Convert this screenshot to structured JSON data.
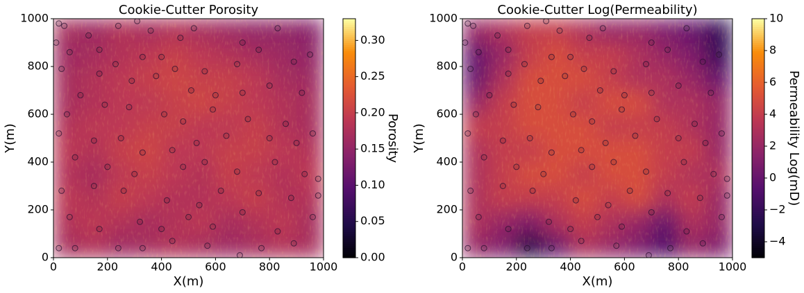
{
  "chart_data": [
    {
      "type": "heatmap",
      "title": "Cookie-Cutter Porosity",
      "xlabel": "X(m)",
      "ylabel": "Y(m)",
      "xlim": [
        0,
        1000
      ],
      "ylim": [
        0,
        1000
      ],
      "xticks": [
        0,
        200,
        400,
        600,
        800,
        1000
      ],
      "yticks": [
        0,
        200,
        400,
        600,
        800,
        1000
      ],
      "colormap": "inferno",
      "colorbar": {
        "label": "Porosity",
        "lim": [
          0,
          0.33
        ],
        "ticks": [
          {
            "value": 0,
            "label": "0.00"
          },
          {
            "value": 0.05,
            "label": "0.05"
          },
          {
            "value": 0.1,
            "label": "0.10"
          },
          {
            "value": 0.15,
            "label": "0.15"
          },
          {
            "value": 0.2,
            "label": "0.20"
          },
          {
            "value": 0.25,
            "label": "0.25"
          },
          {
            "value": 0.3,
            "label": "0.30"
          }
        ]
      },
      "z": [
        [
          0.17,
          0.18,
          0.16,
          0.17,
          0.18,
          0.17,
          0.16,
          0.17,
          0.18,
          0.17
        ],
        [
          0.18,
          0.19,
          0.18,
          0.17,
          0.18,
          0.19,
          0.17,
          0.18,
          0.19,
          0.17
        ],
        [
          0.19,
          0.18,
          0.2,
          0.19,
          0.18,
          0.18,
          0.19,
          0.2,
          0.18,
          0.18
        ],
        [
          0.18,
          0.17,
          0.19,
          0.2,
          0.19,
          0.18,
          0.2,
          0.19,
          0.18,
          0.19
        ],
        [
          0.19,
          0.18,
          0.2,
          0.21,
          0.19,
          0.19,
          0.2,
          0.2,
          0.19,
          0.18
        ],
        [
          0.18,
          0.19,
          0.19,
          0.2,
          0.2,
          0.19,
          0.19,
          0.2,
          0.18,
          0.17
        ],
        [
          0.17,
          0.18,
          0.19,
          0.19,
          0.2,
          0.21,
          0.2,
          0.19,
          0.18,
          0.17
        ],
        [
          0.17,
          0.18,
          0.19,
          0.2,
          0.21,
          0.2,
          0.2,
          0.19,
          0.17,
          0.16
        ],
        [
          0.16,
          0.17,
          0.18,
          0.19,
          0.2,
          0.19,
          0.18,
          0.17,
          0.16,
          0.15
        ],
        [
          0.17,
          0.16,
          0.18,
          0.17,
          0.18,
          0.17,
          0.16,
          0.15,
          0.15,
          0.14
        ]
      ],
      "points": {
        "x": [
          20,
          40,
          130,
          240,
          310,
          360,
          470,
          520,
          700,
          830,
          950,
          10,
          60,
          170,
          230,
          330,
          400,
          450,
          560,
          680,
          760,
          890,
          30,
          100,
          170,
          290,
          380,
          510,
          600,
          700,
          800,
          920,
          50,
          190,
          280,
          410,
          480,
          590,
          720,
          860,
          960,
          20,
          150,
          250,
          330,
          440,
          530,
          640,
          800,
          900,
          80,
          200,
          300,
          480,
          560,
          680,
          820,
          930,
          30,
          150,
          260,
          420,
          540,
          620,
          760,
          880,
          980,
          60,
          170,
          320,
          400,
          500,
          590,
          700,
          830,
          960,
          20,
          80,
          240,
          330,
          440,
          570,
          690,
          770,
          890,
          980
        ],
        "y": [
          980,
          970,
          930,
          970,
          990,
          950,
          920,
          960,
          900,
          960,
          850,
          900,
          860,
          870,
          810,
          840,
          840,
          790,
          780,
          810,
          870,
          820,
          790,
          680,
          770,
          740,
          760,
          700,
          680,
          690,
          720,
          690,
          600,
          640,
          630,
          600,
          570,
          620,
          580,
          560,
          520,
          520,
          490,
          500,
          440,
          450,
          480,
          510,
          500,
          480,
          420,
          380,
          350,
          380,
          400,
          360,
          400,
          350,
          280,
          300,
          280,
          240,
          220,
          280,
          270,
          250,
          260,
          170,
          120,
          150,
          120,
          170,
          130,
          190,
          110,
          170,
          40,
          40,
          40,
          40,
          70,
          50,
          10,
          40,
          60,
          330
        ]
      }
    },
    {
      "type": "heatmap",
      "title": "Cookie-Cutter Log(Permeability)",
      "xlabel": "X(m)",
      "ylabel": "Y(m)",
      "xlim": [
        0,
        1000
      ],
      "ylim": [
        0,
        1000
      ],
      "xticks": [
        0,
        200,
        400,
        600,
        800,
        1000
      ],
      "yticks": [
        0,
        200,
        400,
        600,
        800,
        1000
      ],
      "colormap": "inferno",
      "colorbar": {
        "label": "Permeability Log(mD)",
        "lim": [
          -5,
          10
        ],
        "ticks": [
          {
            "value": -4,
            "label": "−4"
          },
          {
            "value": -2,
            "label": "−2"
          },
          0,
          2,
          4,
          6,
          8,
          10
        ]
      },
      "z": [
        [
          2,
          1,
          -3,
          0,
          3,
          2,
          1,
          -1,
          2,
          1
        ],
        [
          3,
          2,
          1,
          3,
          4,
          3,
          2,
          0,
          3,
          2
        ],
        [
          3,
          4,
          4,
          4,
          5,
          4,
          5,
          3,
          4,
          2
        ],
        [
          3,
          4,
          5,
          5,
          4,
          5,
          5,
          4,
          3,
          3
        ],
        [
          3,
          4,
          4,
          5,
          5,
          5,
          5,
          4,
          4,
          2
        ],
        [
          4,
          4,
          5,
          5,
          5,
          4,
          4,
          4,
          3,
          2
        ],
        [
          2,
          4,
          5,
          5,
          4,
          5,
          5,
          3,
          3,
          2
        ],
        [
          0,
          3,
          5,
          5,
          5,
          4,
          3,
          3,
          2,
          0
        ],
        [
          0,
          2,
          4,
          5,
          4,
          4,
          3,
          2,
          1,
          -2
        ],
        [
          2,
          3,
          4,
          4,
          3,
          2,
          2,
          1,
          0,
          -2
        ]
      ],
      "points": {
        "x": [
          20,
          40,
          130,
          240,
          310,
          360,
          470,
          520,
          700,
          830,
          950,
          10,
          60,
          170,
          230,
          330,
          400,
          450,
          560,
          680,
          760,
          890,
          30,
          100,
          170,
          290,
          380,
          510,
          600,
          700,
          800,
          920,
          50,
          190,
          280,
          410,
          480,
          590,
          720,
          860,
          960,
          20,
          150,
          250,
          330,
          440,
          530,
          640,
          800,
          900,
          80,
          200,
          300,
          480,
          560,
          680,
          820,
          930,
          30,
          150,
          260,
          420,
          540,
          620,
          760,
          880,
          980,
          60,
          170,
          320,
          400,
          500,
          590,
          700,
          830,
          960,
          20,
          80,
          240,
          330,
          440,
          570,
          690,
          770,
          890,
          980
        ],
        "y": [
          980,
          970,
          930,
          970,
          990,
          950,
          920,
          960,
          900,
          960,
          850,
          900,
          860,
          870,
          810,
          840,
          840,
          790,
          780,
          810,
          870,
          820,
          790,
          680,
          770,
          740,
          760,
          700,
          680,
          690,
          720,
          690,
          600,
          640,
          630,
          600,
          570,
          620,
          580,
          560,
          520,
          520,
          490,
          500,
          440,
          450,
          480,
          510,
          500,
          480,
          420,
          380,
          350,
          380,
          400,
          360,
          400,
          350,
          280,
          300,
          280,
          240,
          220,
          280,
          270,
          250,
          260,
          170,
          120,
          150,
          120,
          170,
          130,
          190,
          110,
          170,
          40,
          40,
          40,
          40,
          70,
          50,
          10,
          40,
          60,
          330
        ]
      }
    }
  ]
}
